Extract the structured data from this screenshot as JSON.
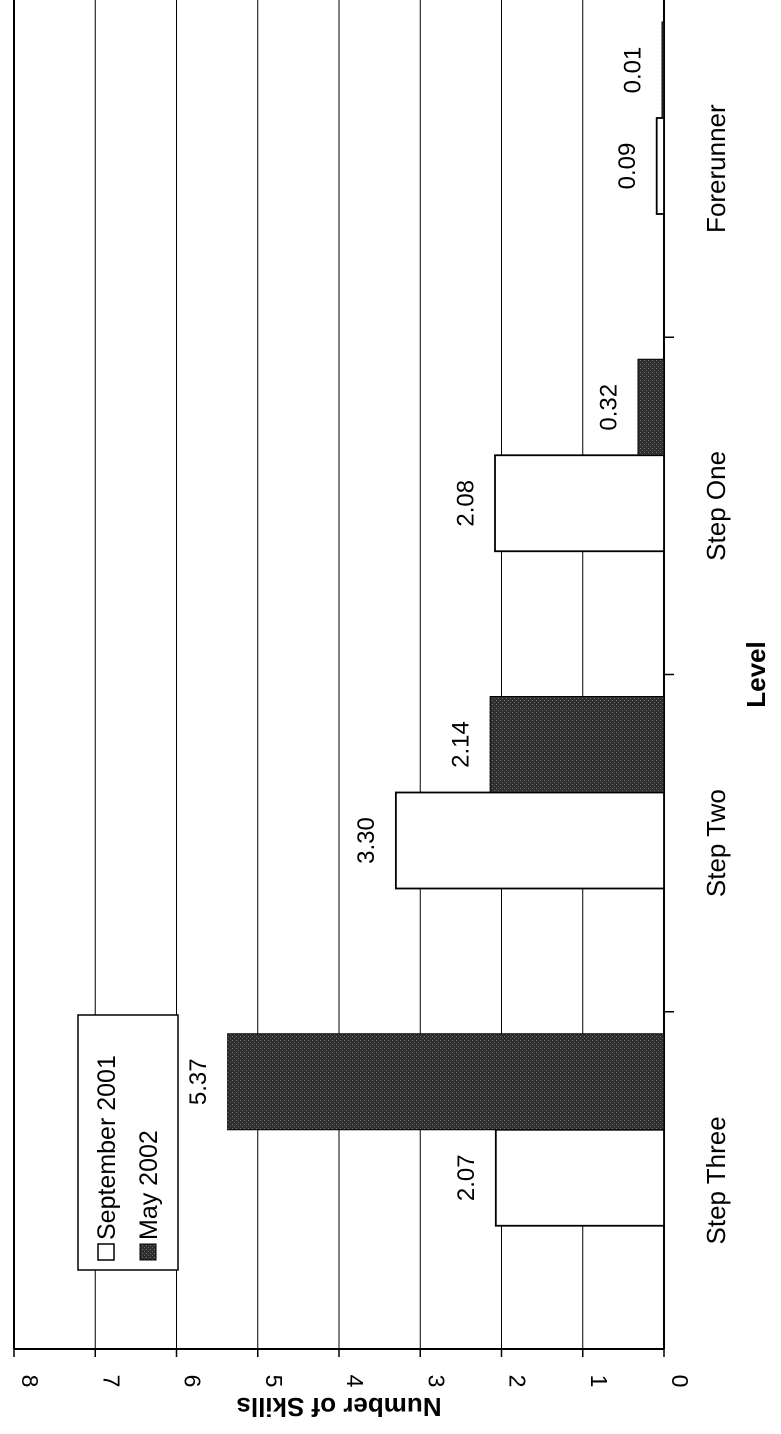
{
  "chart_data": {
    "type": "bar",
    "orientation": "rotated 90° clockwise (values increase toward top of page)",
    "categories": [
      "Forerunner",
      "Step One",
      "Step Two",
      "Step Three"
    ],
    "series": [
      {
        "name": "September 2001",
        "values": [
          0.09,
          2.08,
          3.3,
          2.07
        ],
        "value_labels": [
          "0.09",
          "2.08",
          "3.30",
          "2.07"
        ],
        "color": "#ffffff"
      },
      {
        "name": "May 2002",
        "values": [
          0.01,
          0.32,
          2.14,
          5.37
        ],
        "value_labels": [
          "0.01",
          "0.32",
          "2.14",
          "5.37"
        ],
        "color": "#3a3a3a"
      }
    ],
    "xlabel": "Level",
    "ylabel": "Number of Skills",
    "ylim": [
      0,
      8
    ],
    "yticks": [
      "0",
      "1",
      "2",
      "3",
      "4",
      "5",
      "6",
      "7",
      "8"
    ],
    "grid": true,
    "legend_position": "top-left"
  }
}
